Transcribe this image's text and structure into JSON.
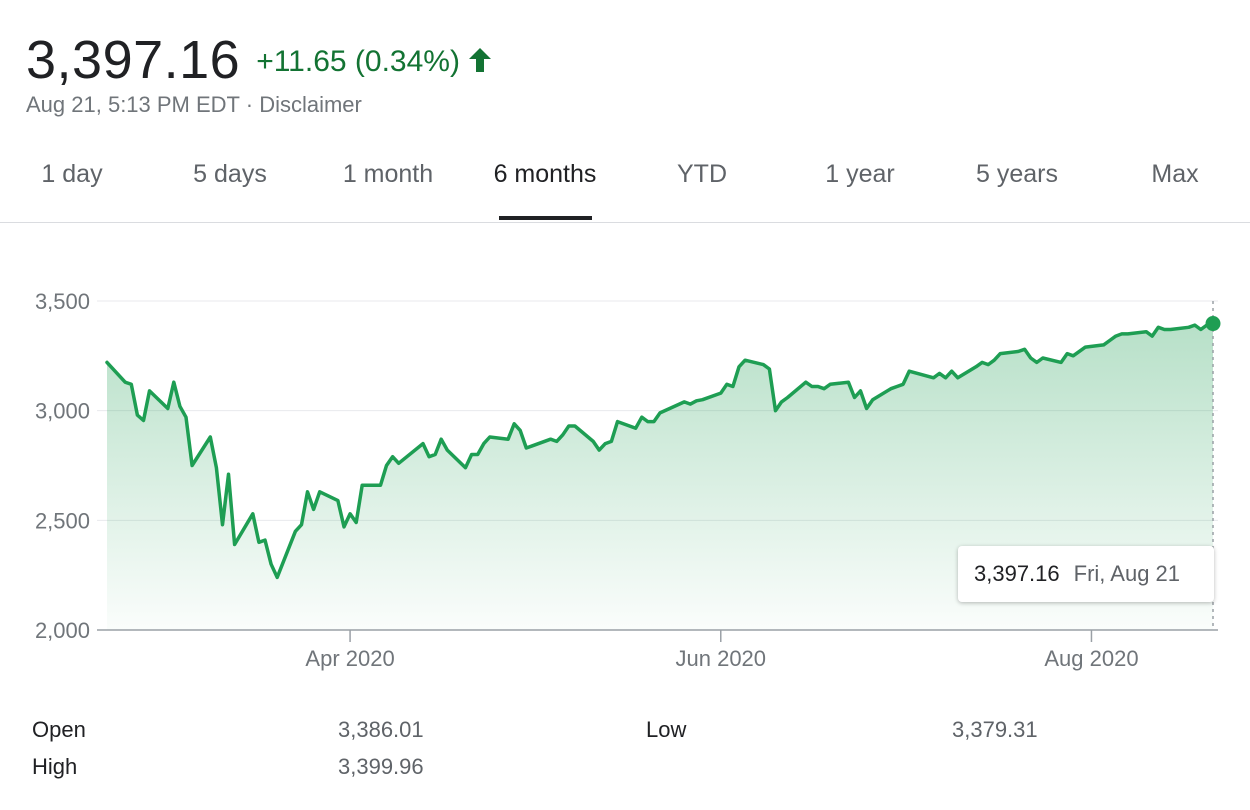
{
  "header": {
    "price": "3,397.16",
    "change": "+11.65 (0.34%)",
    "timestamp": "Aug 21, 5:13 PM EDT",
    "separator": "·",
    "disclaimer": "Disclaimer",
    "up_color": "#137333",
    "arrow_icon": "arrow-up-icon"
  },
  "tabs": [
    {
      "label": "1 day"
    },
    {
      "label": "5 days"
    },
    {
      "label": "1 month"
    },
    {
      "label": "6 months",
      "active": true
    },
    {
      "label": "YTD"
    },
    {
      "label": "1 year"
    },
    {
      "label": "5 years"
    },
    {
      "label": "Max"
    }
  ],
  "tooltip": {
    "value": "3,397.16",
    "date": "Fri, Aug 21"
  },
  "stats": {
    "open_label": "Open",
    "open_value": "3,386.01",
    "high_label": "High",
    "high_value": "3,399.96",
    "low_label": "Low",
    "low_value": "3,379.31"
  },
  "chart_data": {
    "type": "area",
    "title": "",
    "xlabel": "",
    "ylabel": "",
    "ylim": [
      2000,
      3500
    ],
    "yticks": [
      2000,
      2500,
      3000,
      3500
    ],
    "ytick_labels": [
      "2,000",
      "2,500",
      "3,000",
      "3,500"
    ],
    "xticks": [
      {
        "date": "2020-04-01",
        "label": "Apr 2020"
      },
      {
        "date": "2020-06-01",
        "label": "Jun 2020"
      },
      {
        "date": "2020-08-01",
        "label": "Aug 2020"
      }
    ],
    "grid": true,
    "line_color": "#1e9e53",
    "series": [
      {
        "x": [
          "2020-02-21",
          "2020-02-24",
          "2020-02-25",
          "2020-02-26",
          "2020-02-27",
          "2020-02-28",
          "2020-03-02",
          "2020-03-03",
          "2020-03-04",
          "2020-03-05",
          "2020-03-06",
          "2020-03-09",
          "2020-03-10",
          "2020-03-11",
          "2020-03-12",
          "2020-03-13",
          "2020-03-16",
          "2020-03-17",
          "2020-03-18",
          "2020-03-19",
          "2020-03-20",
          "2020-03-23",
          "2020-03-24",
          "2020-03-25",
          "2020-03-26",
          "2020-03-27",
          "2020-03-30",
          "2020-03-31",
          "2020-04-01",
          "2020-04-02",
          "2020-04-03",
          "2020-04-06",
          "2020-04-07",
          "2020-04-08",
          "2020-04-09",
          "2020-04-13",
          "2020-04-14",
          "2020-04-15",
          "2020-04-16",
          "2020-04-17",
          "2020-04-20",
          "2020-04-21",
          "2020-04-22",
          "2020-04-23",
          "2020-04-24",
          "2020-04-27",
          "2020-04-28",
          "2020-04-29",
          "2020-04-30",
          "2020-05-01",
          "2020-05-04",
          "2020-05-05",
          "2020-05-06",
          "2020-05-07",
          "2020-05-08",
          "2020-05-11",
          "2020-05-12",
          "2020-05-13",
          "2020-05-14",
          "2020-05-15",
          "2020-05-18",
          "2020-05-19",
          "2020-05-20",
          "2020-05-21",
          "2020-05-22",
          "2020-05-26",
          "2020-05-27",
          "2020-05-28",
          "2020-05-29",
          "2020-06-01",
          "2020-06-02",
          "2020-06-03",
          "2020-06-04",
          "2020-06-05",
          "2020-06-08",
          "2020-06-09",
          "2020-06-10",
          "2020-06-11",
          "2020-06-12",
          "2020-06-15",
          "2020-06-16",
          "2020-06-17",
          "2020-06-18",
          "2020-06-19",
          "2020-06-22",
          "2020-06-23",
          "2020-06-24",
          "2020-06-25",
          "2020-06-26",
          "2020-06-29",
          "2020-06-30",
          "2020-07-01",
          "2020-07-02",
          "2020-07-06",
          "2020-07-07",
          "2020-07-08",
          "2020-07-09",
          "2020-07-10",
          "2020-07-13",
          "2020-07-14",
          "2020-07-15",
          "2020-07-16",
          "2020-07-17",
          "2020-07-20",
          "2020-07-21",
          "2020-07-22",
          "2020-07-23",
          "2020-07-24",
          "2020-07-27",
          "2020-07-28",
          "2020-07-29",
          "2020-07-30",
          "2020-07-31",
          "2020-08-03",
          "2020-08-04",
          "2020-08-05",
          "2020-08-06",
          "2020-08-07",
          "2020-08-10",
          "2020-08-11",
          "2020-08-12",
          "2020-08-13",
          "2020-08-14",
          "2020-08-17",
          "2020-08-18",
          "2020-08-19",
          "2020-08-20",
          "2020-08-21"
        ],
        "values": [
          3220,
          3130,
          3120,
          2980,
          2955,
          3090,
          3010,
          3130,
          3020,
          2970,
          2750,
          2880,
          2740,
          2480,
          2710,
          2390,
          2530,
          2400,
          2410,
          2300,
          2240,
          2450,
          2480,
          2630,
          2550,
          2630,
          2590,
          2470,
          2530,
          2490,
          2660,
          2660,
          2750,
          2790,
          2760,
          2850,
          2790,
          2800,
          2870,
          2820,
          2740,
          2800,
          2800,
          2850,
          2880,
          2870,
          2940,
          2910,
          2830,
          2840,
          2870,
          2860,
          2890,
          2930,
          2930,
          2860,
          2820,
          2850,
          2860,
          2950,
          2920,
          2970,
          2950,
          2950,
          2990,
          3040,
          3030,
          3045,
          3050,
          3080,
          3120,
          3110,
          3200,
          3230,
          3210,
          3190,
          3000,
          3040,
          3060,
          3130,
          3110,
          3110,
          3100,
          3120,
          3130,
          3060,
          3090,
          3010,
          3050,
          3100,
          3110,
          3120,
          3180,
          3150,
          3170,
          3150,
          3180,
          3150,
          3200,
          3220,
          3210,
          3230,
          3260,
          3270,
          3280,
          3240,
          3220,
          3240,
          3220,
          3260,
          3250,
          3270,
          3290,
          3300,
          3320,
          3340,
          3350,
          3350,
          3360,
          3340,
          3380,
          3370,
          3370,
          3380,
          3390,
          3370,
          3390,
          3397.16
        ]
      }
    ]
  }
}
